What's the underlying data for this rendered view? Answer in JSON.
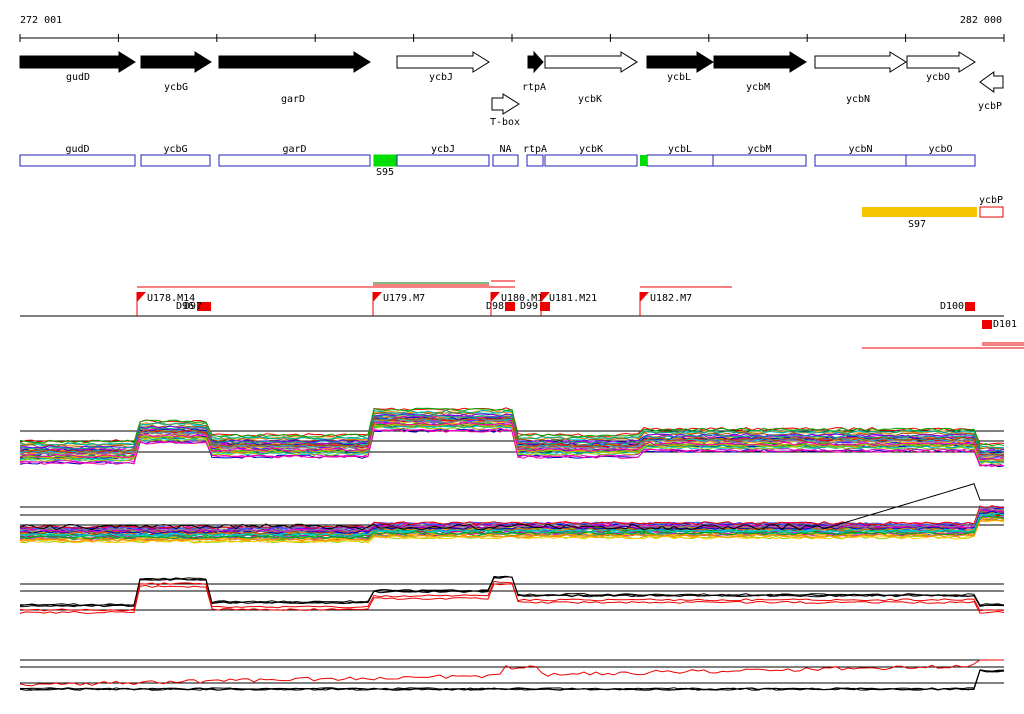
{
  "scale": {
    "start": "272 001",
    "end": "282 000"
  },
  "genes": [
    "gudD",
    "ycbG",
    "garD",
    "ycbJ",
    "rtpA",
    "ycbK",
    "ycbL",
    "ycbM",
    "ycbN",
    "ycbO",
    "ycbP",
    "T-box"
  ],
  "segments": [
    "gudD",
    "ycbG",
    "garD",
    "S95",
    "ycbJ",
    "NA",
    "rtpA",
    "ycbK",
    "ycbL",
    "ycbM",
    "ycbN",
    "ycbO"
  ],
  "regions": [
    "ycbP",
    "S97"
  ],
  "features": [
    "U178.M14",
    "D96",
    "D97",
    "U179.M7",
    "D98",
    "U180.M1",
    "D99",
    "U181.M21",
    "U182.M7",
    "D100",
    "D101"
  ]
}
